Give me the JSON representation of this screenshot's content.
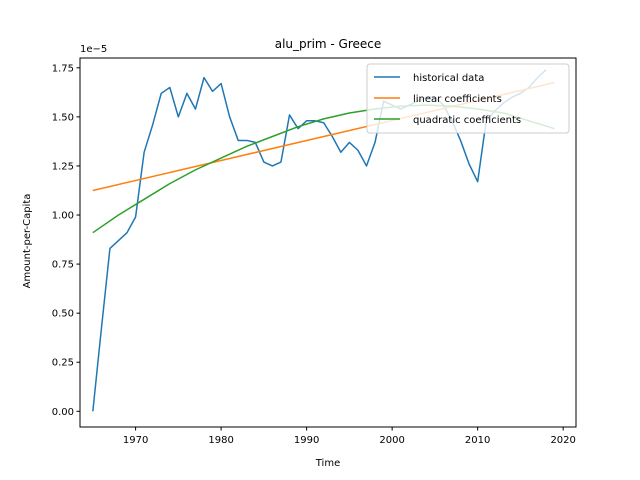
{
  "chart_data": {
    "type": "line",
    "title": "alu_prim - Greece",
    "xlabel": "Time",
    "ylabel": "Amount-per-Capita",
    "y_offset_label": "1e−5",
    "xlim": [
      1963.5,
      2021.5
    ],
    "ylim": [
      -0.08,
      1.8
    ],
    "x_ticks": [
      1970,
      1980,
      1990,
      2000,
      2010,
      2020
    ],
    "y_ticks": [
      0.0,
      0.25,
      0.5,
      0.75,
      1.0,
      1.25,
      1.5,
      1.75
    ],
    "y_tick_labels": [
      "0.00",
      "0.25",
      "0.50",
      "0.75",
      "1.00",
      "1.25",
      "1.50",
      "1.75"
    ],
    "grid": false,
    "legend_position": "top-right",
    "series": [
      {
        "name": "historical data",
        "color": "#1f77b4",
        "x": [
          1965,
          1966,
          1967,
          1968,
          1969,
          1970,
          1971,
          1972,
          1973,
          1974,
          1975,
          1976,
          1977,
          1978,
          1979,
          1980,
          1981,
          1982,
          1983,
          1984,
          1985,
          1986,
          1987,
          1988,
          1989,
          1990,
          1991,
          1992,
          1993,
          1994,
          1995,
          1996,
          1997,
          1998,
          1999,
          2000,
          2001,
          2002,
          2003,
          2004,
          2005,
          2006,
          2007,
          2008,
          2009,
          2010,
          2011,
          2012,
          2013,
          2014,
          2015,
          2016,
          2017,
          2018
        ],
        "y": [
          0.0,
          0.42,
          0.83,
          0.87,
          0.91,
          0.99,
          1.32,
          1.46,
          1.62,
          1.65,
          1.5,
          1.62,
          1.54,
          1.7,
          1.63,
          1.67,
          1.5,
          1.38,
          1.38,
          1.37,
          1.27,
          1.25,
          1.27,
          1.51,
          1.44,
          1.48,
          1.48,
          1.47,
          1.4,
          1.32,
          1.37,
          1.33,
          1.25,
          1.37,
          1.58,
          1.56,
          1.54,
          1.56,
          1.58,
          1.6,
          1.6,
          1.56,
          1.48,
          1.38,
          1.26,
          1.17,
          1.48,
          1.53,
          1.57,
          1.6,
          1.62,
          1.65,
          1.7,
          1.74
        ]
      },
      {
        "name": "linear coefficients",
        "color": "#ff7f0e",
        "x": [
          1965,
          2019
        ],
        "y": [
          1.125,
          1.675
        ]
      },
      {
        "name": "quadratic coefficients",
        "color": "#2ca02c",
        "x": [
          1965,
          1968,
          1971,
          1974,
          1977,
          1980,
          1983,
          1986,
          1989,
          1992,
          1995,
          1998,
          2001,
          2004,
          2007,
          2010,
          2013,
          2016,
          2019
        ],
        "y": [
          0.91,
          1.0,
          1.08,
          1.16,
          1.23,
          1.29,
          1.35,
          1.4,
          1.45,
          1.49,
          1.52,
          1.54,
          1.555,
          1.56,
          1.555,
          1.54,
          1.52,
          1.48,
          1.44
        ]
      }
    ]
  }
}
